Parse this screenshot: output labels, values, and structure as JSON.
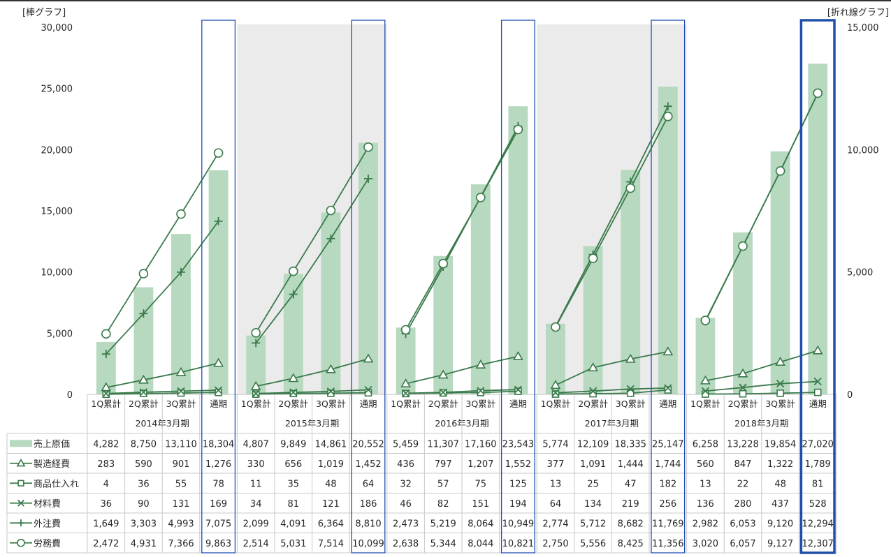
{
  "chart_data": {
    "type": "bar",
    "left_axis_label": "[棒グラフ]",
    "right_axis_label": "[折れ線グラフ]",
    "left_ylim": [
      0,
      30000
    ],
    "left_ticks": [
      "30,000",
      "25,000",
      "20,000",
      "15,000",
      "10,000",
      "5,000",
      "0"
    ],
    "right_ylim": [
      0,
      15000
    ],
    "right_ticks": [
      "15,000",
      "10,000",
      "5,000",
      "0"
    ],
    "fiscal_years": [
      "2014年3月期",
      "2015年3月期",
      "2016年3月期",
      "2017年3月期",
      "2018年3月期"
    ],
    "quarters": [
      "1Q累計",
      "2Q累計",
      "3Q累計",
      "通期"
    ],
    "bar_series": {
      "name": "売上原価",
      "color": "#b7d9bf",
      "values": [
        4282,
        8750,
        13110,
        18304,
        4807,
        9849,
        14861,
        20552,
        5459,
        11307,
        17160,
        23543,
        5774,
        12109,
        18335,
        25147,
        6258,
        13228,
        19854,
        27020
      ],
      "labels": [
        "4,282",
        "8,750",
        "13,110",
        "18,304",
        "4,807",
        "9,849",
        "14,861",
        "20,552",
        "5,459",
        "11,307",
        "17,160",
        "23,543",
        "5,774",
        "12,109",
        "18,335",
        "25,147",
        "6,258",
        "13,228",
        "19,854",
        "27,020"
      ]
    },
    "line_series": [
      {
        "name": "製造経費",
        "marker": "triangle",
        "values": [
          283,
          590,
          901,
          1276,
          330,
          656,
          1019,
          1452,
          436,
          797,
          1207,
          1552,
          377,
          1091,
          1444,
          1744,
          560,
          847,
          1322,
          1789
        ],
        "labels": [
          "283",
          "590",
          "901",
          "1,276",
          "330",
          "656",
          "1,019",
          "1,452",
          "436",
          "797",
          "1,207",
          "1,552",
          "377",
          "1,091",
          "1,444",
          "1,744",
          "560",
          "847",
          "1,322",
          "1,789"
        ]
      },
      {
        "name": "商品仕入れ",
        "marker": "square",
        "values": [
          4,
          36,
          55,
          78,
          11,
          35,
          48,
          64,
          32,
          57,
          75,
          125,
          13,
          25,
          47,
          182,
          13,
          22,
          48,
          81
        ],
        "labels": [
          "4",
          "36",
          "55",
          "78",
          "11",
          "35",
          "48",
          "64",
          "32",
          "57",
          "75",
          "125",
          "13",
          "25",
          "47",
          "182",
          "13",
          "22",
          "48",
          "81"
        ]
      },
      {
        "name": "材料費",
        "marker": "x",
        "values": [
          36,
          90,
          131,
          169,
          34,
          81,
          121,
          186,
          46,
          82,
          151,
          194,
          64,
          134,
          219,
          256,
          136,
          280,
          437,
          528
        ],
        "labels": [
          "36",
          "90",
          "131",
          "169",
          "34",
          "81",
          "121",
          "186",
          "46",
          "82",
          "151",
          "194",
          "64",
          "134",
          "219",
          "256",
          "136",
          "280",
          "437",
          "528"
        ]
      },
      {
        "name": "外注費",
        "marker": "plus",
        "values": [
          1649,
          3303,
          4993,
          7075,
          2099,
          4091,
          6364,
          8810,
          2473,
          5219,
          8064,
          10949,
          2774,
          5712,
          8682,
          11769,
          2982,
          6053,
          9120,
          12294
        ],
        "labels": [
          "1,649",
          "3,303",
          "4,993",
          "7,075",
          "2,099",
          "4,091",
          "6,364",
          "8,810",
          "2,473",
          "5,219",
          "8,064",
          "10,949",
          "2,774",
          "5,712",
          "8,682",
          "11,769",
          "2,982",
          "6,053",
          "9,120",
          "12,294"
        ]
      },
      {
        "name": "労務費",
        "marker": "circle",
        "values": [
          2472,
          4931,
          7366,
          9863,
          2514,
          5031,
          7514,
          10099,
          2638,
          5344,
          8044,
          10821,
          2750,
          5556,
          8425,
          11356,
          3020,
          6057,
          9127,
          12307
        ],
        "labels": [
          "2,472",
          "4,931",
          "7,366",
          "9,863",
          "2,514",
          "5,031",
          "7,514",
          "10,099",
          "2,638",
          "5,344",
          "8,044",
          "10,821",
          "2,750",
          "5,556",
          "8,425",
          "11,356",
          "3,020",
          "6,057",
          "9,127",
          "12,307"
        ]
      }
    ],
    "line_color": "#3a7a4b",
    "shaded_fiscal_years": [
      1,
      3
    ],
    "shade_color": "#ebebeb",
    "highlight_color": "#1f4fb4",
    "highlight_strong_color": "#1f4fa8"
  }
}
